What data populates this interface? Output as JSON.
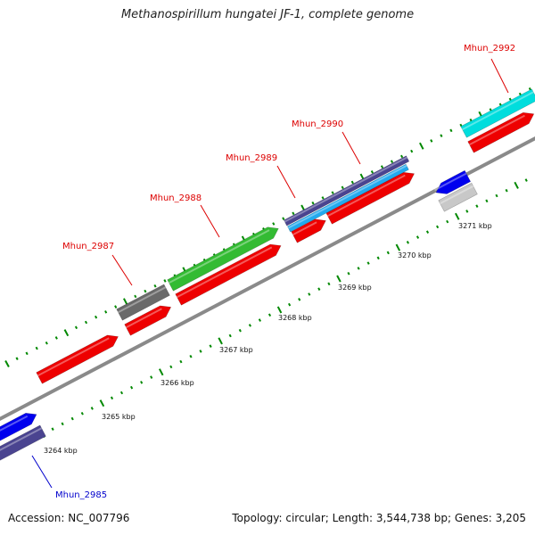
{
  "title": "Methanospirillum hungatei JF-1, complete genome",
  "footer": {
    "accession": "Accession: NC_007796",
    "summary": "Topology: circular; Length: 3,544,738 bp; Genes: 3,205"
  },
  "colors": {
    "gene_label": "#dd0000",
    "highlight_label": "#0000cc",
    "backbone": "#8a8a8a",
    "tick": "#008800",
    "cds": "#ee0000",
    "cyan": "#00dddd",
    "navy": "#4a4490",
    "blue": "#0000ee",
    "green": "#33bb33",
    "gray": "#6a6a6a",
    "light_gray": "#c8c8c8"
  },
  "scale_labels": [
    "3264 kbp",
    "3265 kbp",
    "3266 kbp",
    "3267 kbp",
    "3268 kbp",
    "3269 kbp",
    "3270 kbp",
    "3271 kbp"
  ],
  "gene_labels": [
    "Mhun_2985",
    "Mhun_2987",
    "Mhun_2988",
    "Mhun_2989",
    "Mhun_2990",
    "Mhun_2992"
  ],
  "highlighted_gene": "Mhun_2985"
}
